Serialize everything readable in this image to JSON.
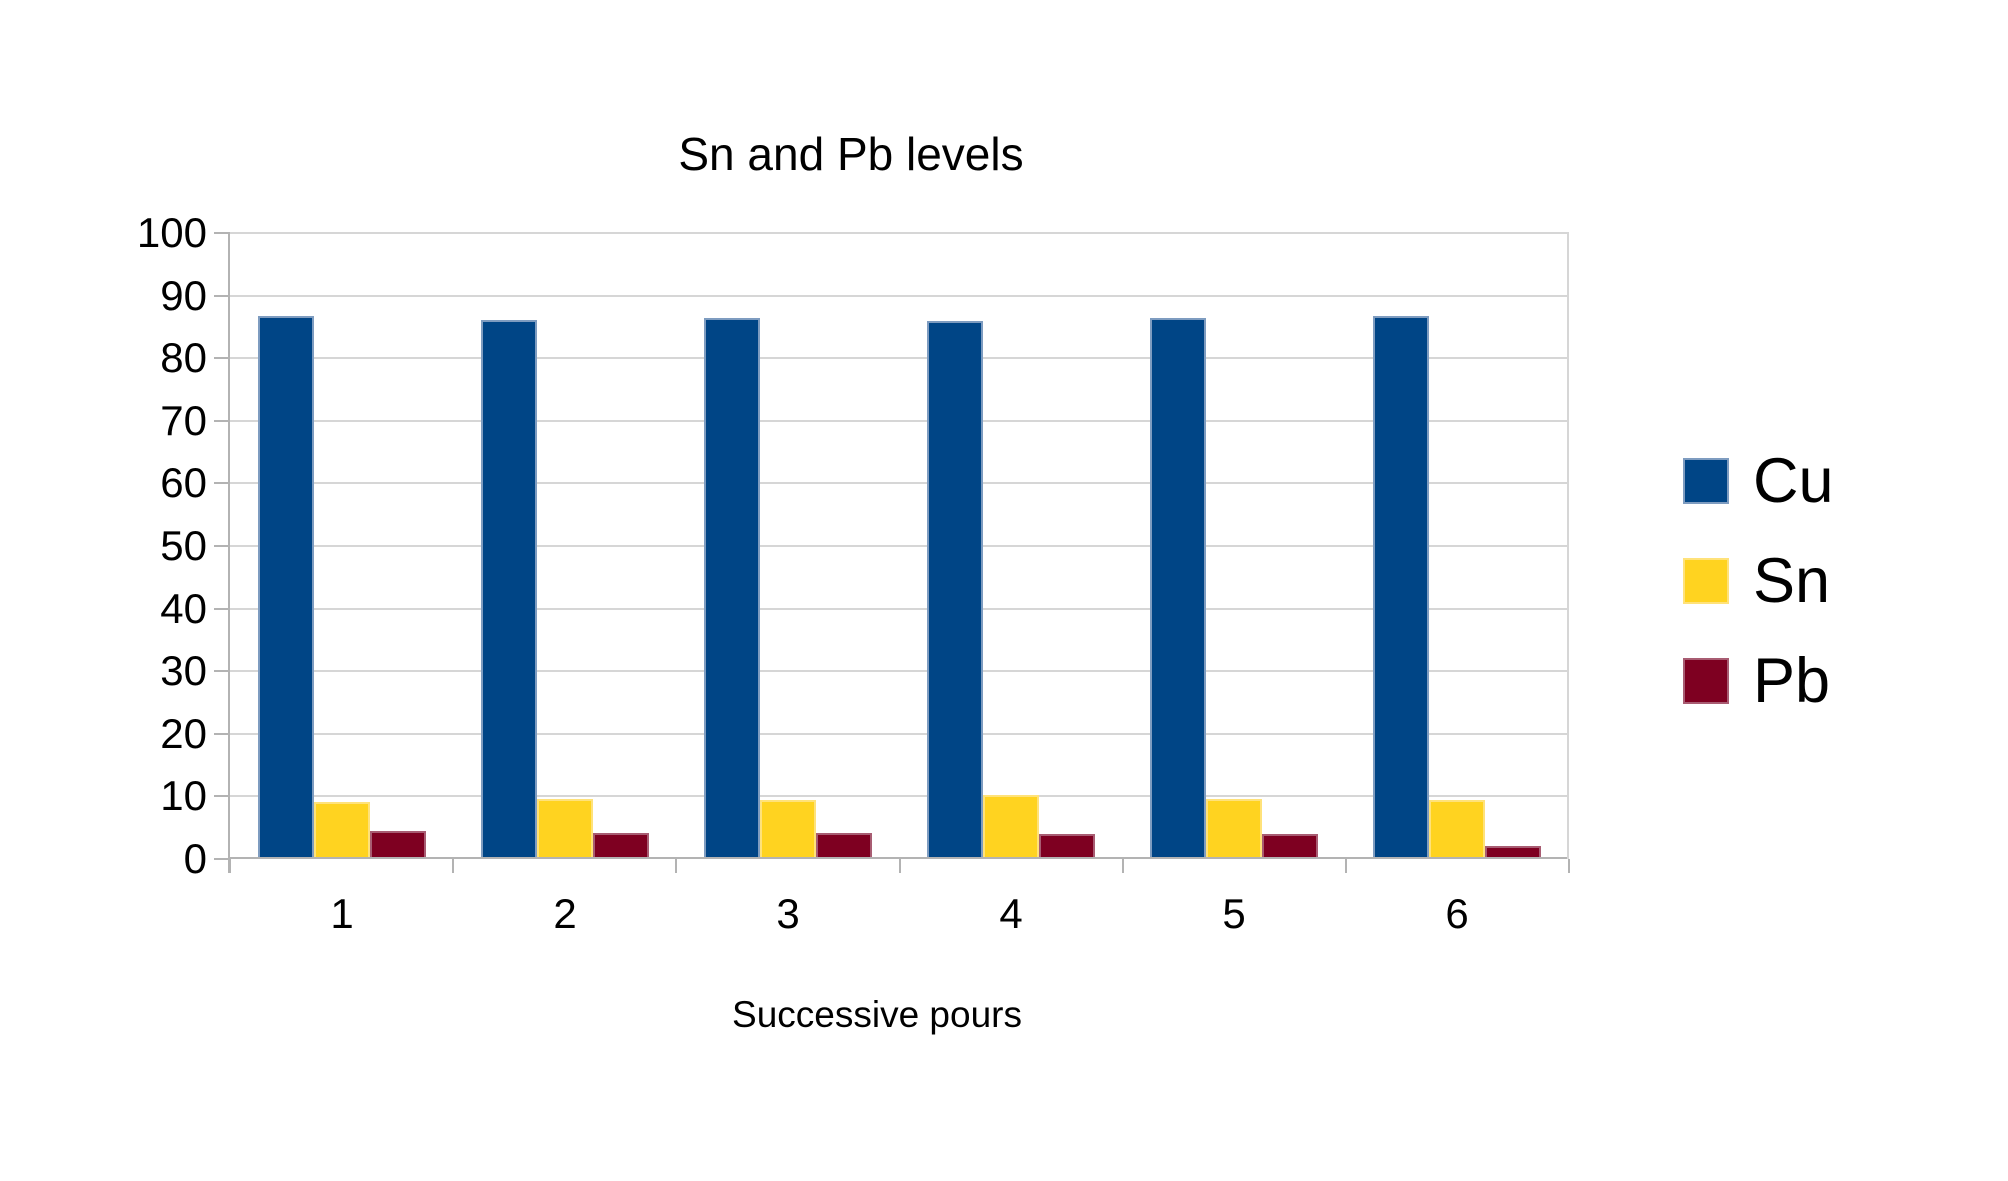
{
  "chart_data": {
    "type": "bar",
    "title": "Sn and Pb levels",
    "xlabel": "Successive pours",
    "ylabel": "",
    "categories": [
      "1",
      "2",
      "3",
      "4",
      "5",
      "6"
    ],
    "series": [
      {
        "name": "Cu",
        "color": "#004586",
        "border_color": "#7E9CC0",
        "values": [
          86.7,
          86.1,
          86.4,
          86.0,
          86.4,
          86.7
        ]
      },
      {
        "name": "Sn",
        "color": "#FFD320",
        "border_color": "#FFE27A",
        "values": [
          9.1,
          9.6,
          9.4,
          10.2,
          9.6,
          9.5
        ]
      },
      {
        "name": "Pb",
        "color": "#7E0021",
        "border_color": "#A85C72",
        "values": [
          4.4,
          4.2,
          4.2,
          4.0,
          4.0,
          2.1
        ]
      }
    ],
    "ylim": [
      0,
      100
    ],
    "yticks": [
      0,
      10,
      20,
      30,
      40,
      50,
      60,
      70,
      80,
      90,
      100
    ],
    "grid": "horizontal",
    "legend_position": "right",
    "background_color": "#FFFFFF",
    "gridline_color": "#D6D6D6",
    "axis_color": "#B3B3B3",
    "text_color": "#000000"
  }
}
